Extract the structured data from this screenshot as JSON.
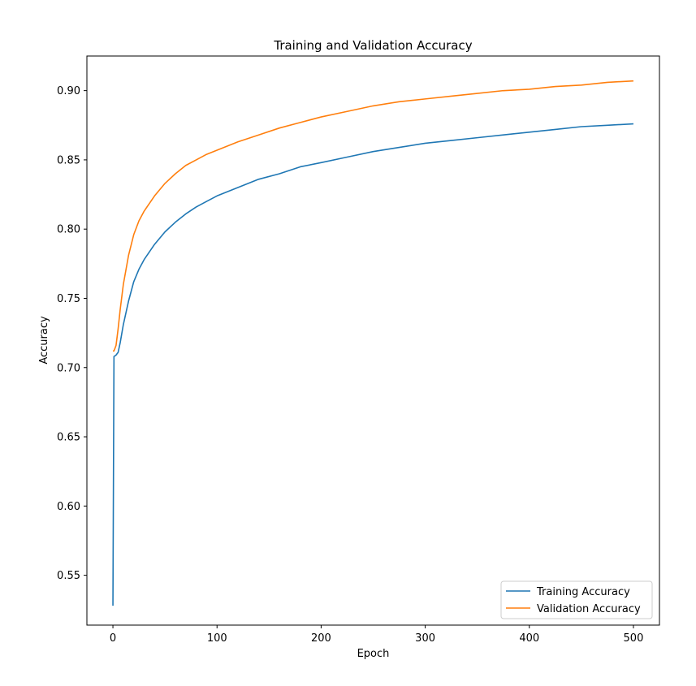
{
  "chart_data": {
    "type": "line",
    "title": "Training and Validation Accuracy",
    "xlabel": "Epoch",
    "ylabel": "Accuracy",
    "xlim": [
      -25,
      525
    ],
    "ylim": [
      0.514,
      0.925
    ],
    "xticks": [
      0,
      100,
      200,
      300,
      400,
      500
    ],
    "xtick_labels": [
      "0",
      "100",
      "200",
      "300",
      "400",
      "500"
    ],
    "yticks": [
      0.55,
      0.6,
      0.65,
      0.7,
      0.75,
      0.8,
      0.85,
      0.9
    ],
    "ytick_labels": [
      "0.55",
      "0.60",
      "0.65",
      "0.70",
      "0.75",
      "0.80",
      "0.85",
      "0.90"
    ],
    "grid": false,
    "legend_position": "lower right",
    "series": [
      {
        "name": "Training Accuracy",
        "color": "#1f77b4",
        "x": [
          0,
          1,
          3,
          5,
          7,
          10,
          15,
          20,
          25,
          30,
          40,
          50,
          60,
          70,
          80,
          90,
          100,
          120,
          140,
          160,
          180,
          200,
          225,
          250,
          275,
          300,
          325,
          350,
          375,
          400,
          425,
          450,
          475,
          500
        ],
        "y": [
          0.528,
          0.708,
          0.709,
          0.711,
          0.718,
          0.731,
          0.748,
          0.762,
          0.771,
          0.778,
          0.789,
          0.798,
          0.805,
          0.811,
          0.816,
          0.82,
          0.824,
          0.83,
          0.836,
          0.84,
          0.845,
          0.848,
          0.852,
          0.856,
          0.859,
          0.862,
          0.864,
          0.866,
          0.868,
          0.87,
          0.872,
          0.874,
          0.875,
          0.876
        ]
      },
      {
        "name": "Validation Accuracy",
        "color": "#ff7f0e",
        "x": [
          0,
          1,
          3,
          5,
          7,
          10,
          15,
          20,
          25,
          30,
          40,
          50,
          60,
          70,
          80,
          90,
          100,
          120,
          140,
          160,
          180,
          200,
          225,
          250,
          275,
          300,
          325,
          350,
          375,
          400,
          425,
          450,
          475,
          500
        ],
        "y": [
          0.712,
          0.712,
          0.716,
          0.728,
          0.742,
          0.76,
          0.781,
          0.796,
          0.806,
          0.813,
          0.824,
          0.833,
          0.84,
          0.846,
          0.85,
          0.854,
          0.857,
          0.863,
          0.868,
          0.873,
          0.877,
          0.881,
          0.885,
          0.889,
          0.892,
          0.894,
          0.896,
          0.898,
          0.9,
          0.901,
          0.903,
          0.904,
          0.906,
          0.907
        ]
      }
    ]
  }
}
